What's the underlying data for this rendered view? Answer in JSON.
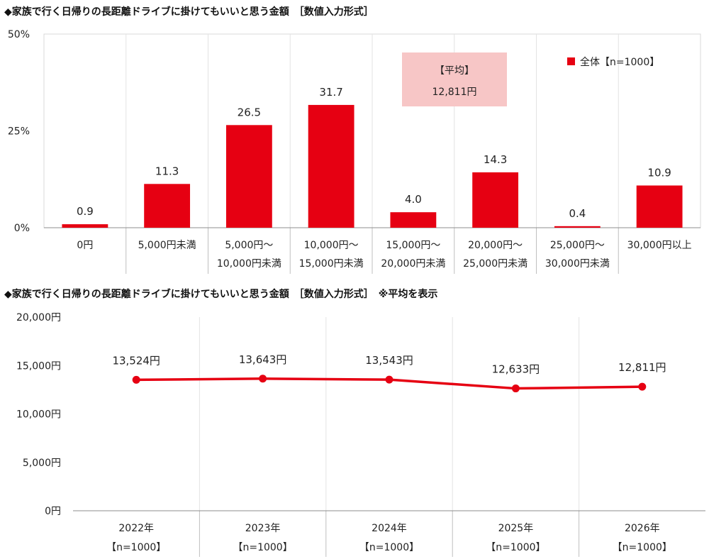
{
  "chart_data": [
    {
      "type": "bar",
      "title": "◆家族で行く日帰りの長距離ドライブに掛けてもいいと思う金額　［数値入力形式］",
      "categories": [
        [
          "0円"
        ],
        [
          "5,000円未満"
        ],
        [
          "5,000円～",
          "10,000円未満"
        ],
        [
          "10,000円～",
          "15,000円未満"
        ],
        [
          "15,000円～",
          "20,000円未満"
        ],
        [
          "20,000円～",
          "25,000円未満"
        ],
        [
          "25,000円～",
          "30,000円未満"
        ],
        [
          "30,000円以上"
        ]
      ],
      "series": [
        {
          "name": "全体【n=1000】",
          "values": [
            0.9,
            11.3,
            26.5,
            31.7,
            4.0,
            14.3,
            0.4,
            10.9
          ],
          "value_labels": [
            "0.9",
            "11.3",
            "26.5",
            "31.7",
            "4.0",
            "14.3",
            "0.4",
            "10.9"
          ],
          "color": "#e60012"
        }
      ],
      "yticks": [
        {
          "value": 50,
          "label": "50%"
        },
        {
          "value": 25,
          "label": "25%"
        },
        {
          "value": 0,
          "label": "0%"
        }
      ],
      "ylim": [
        0,
        50
      ],
      "legend": {
        "label": "全体【n=1000】",
        "placement": "top-right"
      },
      "annotation": {
        "line1": "【平均】",
        "line2": "12,811円",
        "color": "#f7c6c6"
      },
      "grid": "vertical-separators"
    },
    {
      "type": "line",
      "title": "◆家族で行く日帰りの長距離ドライブに掛けてもいいと思う金額　［数値入力形式］　※平均を表示",
      "categories": [
        [
          "2022年",
          "【n=1000】"
        ],
        [
          "2023年",
          "【n=1000】"
        ],
        [
          "2024年",
          "【n=1000】"
        ],
        [
          "2025年",
          "【n=1000】"
        ],
        [
          "2026年",
          "【n=1000】"
        ]
      ],
      "series": [
        {
          "name": "",
          "values": [
            13524,
            13643,
            13543,
            12633,
            12811
          ],
          "value_labels": [
            "13,524円",
            "13,643円",
            "13,543円",
            "12,633円",
            "12,811円"
          ],
          "color": "#e60012"
        }
      ],
      "yticks": [
        {
          "value": 20000,
          "label": "20,000円"
        },
        {
          "value": 15000,
          "label": "15,000円"
        },
        {
          "value": 10000,
          "label": "10,000円"
        },
        {
          "value": 5000,
          "label": "5,000円"
        },
        {
          "value": 0,
          "label": "0円"
        }
      ],
      "ylim": [
        0,
        20000
      ],
      "grid": "vertical-separators"
    }
  ]
}
